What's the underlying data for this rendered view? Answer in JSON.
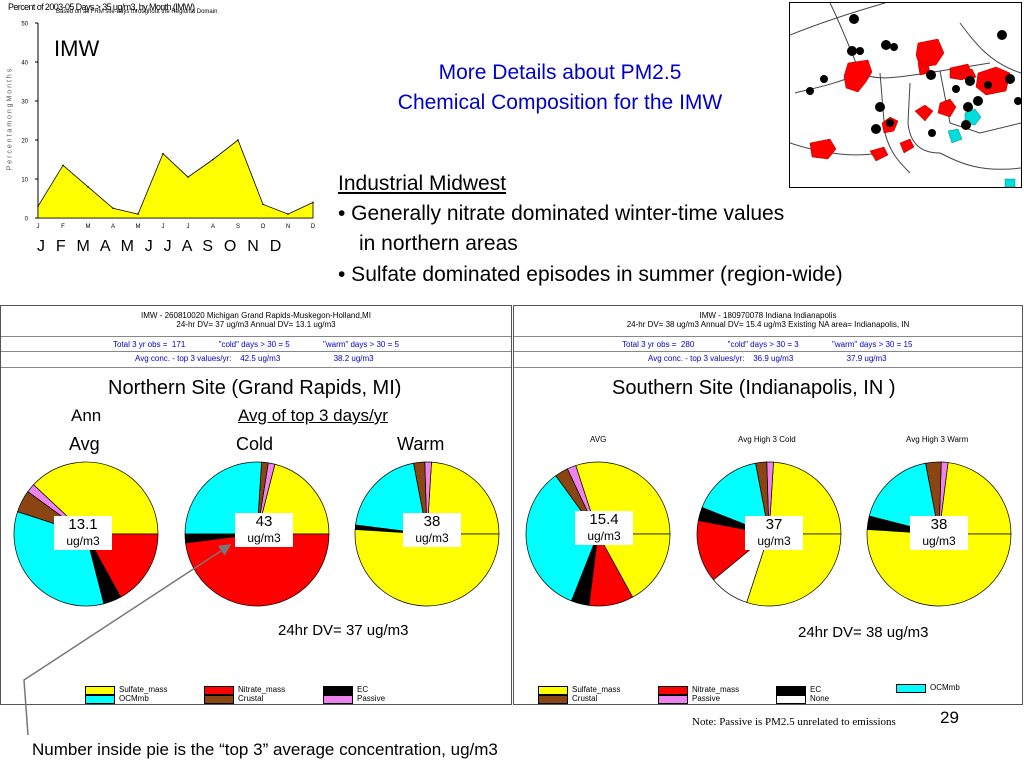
{
  "slide": {
    "page_number": "29",
    "title_line1": "More Details about PM2.5",
    "title_line2": "Chemical Composition for the IMW",
    "footnote": "Number inside pie is the “top 3” average concentration, ug/m3",
    "note_passive": "Note: Passive is PM2.5 unrelated to emissions"
  },
  "monthly_chart": {
    "title": "Percent of 2003-05 Days > 35 ug/m3, by Month (IMW)",
    "subtitle": "Based on all FRM site-days throughout the Regional Domain",
    "ylabel": "P e r c e n t   a m o n g   M o n t h s",
    "label": "IMW",
    "month_letters": "J  F  M  A  M  J  J  A  S  O  N  D",
    "fill_color": "#ffff00",
    "chart_data": {
      "type": "area",
      "categories": [
        "J",
        "F",
        "M",
        "A",
        "M",
        "J",
        "J",
        "A",
        "S",
        "O",
        "N",
        "D"
      ],
      "values": [
        3,
        13.5,
        8,
        2.5,
        1,
        16.5,
        10.5,
        15,
        20,
        3.5,
        1,
        4
      ],
      "ylim": [
        0,
        50
      ],
      "yticks": [
        0,
        10,
        20,
        30,
        40,
        50
      ]
    }
  },
  "bullets": {
    "heading": "Industrial Midwest",
    "line1": "• Generally nitrate dominated winter-time values",
    "line2": "in northern areas",
    "line3": "• Sulfate dominated episodes in summer (region-wide)"
  },
  "colors": {
    "sulfate": "#ffff00",
    "nitrate": "#ff0000",
    "ec": "#000000",
    "crustal": "#8b4513",
    "passive": "#ee82ee",
    "ocm": "#00ffff",
    "none": "#ffffff"
  },
  "north": {
    "header_line1": "IMW -  260810020  Michigan Grand Rapids-Muskegon-Holland,MI",
    "header_line2": "24-hr DV=  37 ug/m3    Annual DV=  13.1 ug/m3",
    "obs_text": "Total 3 yr obs =  171               \"cold\" days > 30 = 5               \"warm\" days > 30 = 5",
    "avg_text": "Avg conc. - top 3 values/yr:    42.5 ug/m3                        38.2 ug/m3",
    "site_title": "Northern Site (Grand Rapids, MI)",
    "ann": "Ann",
    "avg_top3": "Avg of top 3 days/yr",
    "avg": "Avg",
    "cold": "Cold",
    "warm": "Warm",
    "dv_text": "24hr DV= 37 ug/m3",
    "pies": [
      {
        "value": "13.1",
        "unit": "ug/m3",
        "slices": [
          [
            "sulfate",
            0.38
          ],
          [
            "passive",
            0.02
          ],
          [
            "crustal",
            0.05
          ],
          [
            "ocm",
            0.34
          ],
          [
            "ec",
            0.04
          ],
          [
            "nitrate",
            0.17
          ]
        ]
      },
      {
        "value": "43",
        "unit": "ug/m3",
        "slices": [
          [
            "sulfate",
            0.21
          ],
          [
            "passive",
            0.015
          ],
          [
            "crustal",
            0.015
          ],
          [
            "ocm",
            0.26
          ],
          [
            "ec",
            0.02
          ],
          [
            "nitrate",
            0.48
          ]
        ]
      },
      {
        "value": "38",
        "unit": "ug/m3",
        "slices": [
          [
            "sulfate",
            0.24
          ],
          [
            "passive",
            0.015
          ],
          [
            "crustal",
            0.025
          ],
          [
            "ocm",
            0.2
          ],
          [
            "ec",
            0.01
          ],
          [
            "sulfate",
            0.51
          ]
        ]
      }
    ],
    "legend": [
      {
        "key": "sulfate",
        "label": "Sulfate_mass"
      },
      {
        "key": "nitrate",
        "label": "Nitrate_mass"
      },
      {
        "key": "ec",
        "label": "EC"
      },
      {
        "key": "ocm",
        "label": "OCMmb"
      },
      {
        "key": "crustal",
        "label": "Crustal"
      },
      {
        "key": "passive",
        "label": "Passive"
      }
    ]
  },
  "south": {
    "header_line1": "IMW -  180970078  Indiana Indianapolis",
    "header_line2": "24-hr DV=  38 ug/m3    Annual DV=  15.4 ug/m3    Existing NA area= Indianapolis, IN",
    "obs_text": "Total 3 yr obs =  280               \"cold\" days > 30 = 3               \"warm\" days > 30 = 15",
    "avg_text": "Avg conc. - top 3 values/yr:    36.9 ug/m3                        37.9 ug/m3",
    "site_title": "Southern Site (Indianapolis, IN )",
    "label_avg": "AVG",
    "label_cold": "Avg High 3 Cold",
    "label_warm": "Avg High 3 Warm",
    "dv_text": "24hr DV= 38 ug/m3",
    "pies": [
      {
        "value": "15.4",
        "unit": "ug/m3",
        "slices": [
          [
            "sulfate",
            0.3
          ],
          [
            "passive",
            0.02
          ],
          [
            "crustal",
            0.03
          ],
          [
            "ocm",
            0.34
          ],
          [
            "ec",
            0.04
          ],
          [
            "nitrate",
            0.1
          ],
          [
            "sulfate",
            0.17
          ]
        ]
      },
      {
        "value": "37",
        "unit": "ug/m3",
        "slices": [
          [
            "sulfate",
            0.24
          ],
          [
            "passive",
            0.015
          ],
          [
            "crustal",
            0.025
          ],
          [
            "ocm",
            0.16
          ],
          [
            "ec",
            0.03
          ],
          [
            "nitrate",
            0.14
          ],
          [
            "none",
            0.09
          ],
          [
            "sulfate",
            0.3
          ]
        ]
      },
      {
        "value": "38",
        "unit": "ug/m3",
        "slices": [
          [
            "sulfate",
            0.23
          ],
          [
            "passive",
            0.015
          ],
          [
            "crustal",
            0.035
          ],
          [
            "ocm",
            0.18
          ],
          [
            "ec",
            0.03
          ],
          [
            "sulfate",
            0.51
          ]
        ]
      }
    ],
    "legend": [
      {
        "key": "sulfate",
        "label": "Sulfate_mass"
      },
      {
        "key": "nitrate",
        "label": "Nitrate_mass"
      },
      {
        "key": "ec",
        "label": "EC"
      },
      {
        "key": "ocm",
        "label": "OCMmb"
      },
      {
        "key": "crustal",
        "label": "Crustal"
      },
      {
        "key": "passive",
        "label": "Passive"
      },
      {
        "key": "none",
        "label": "None"
      }
    ]
  }
}
